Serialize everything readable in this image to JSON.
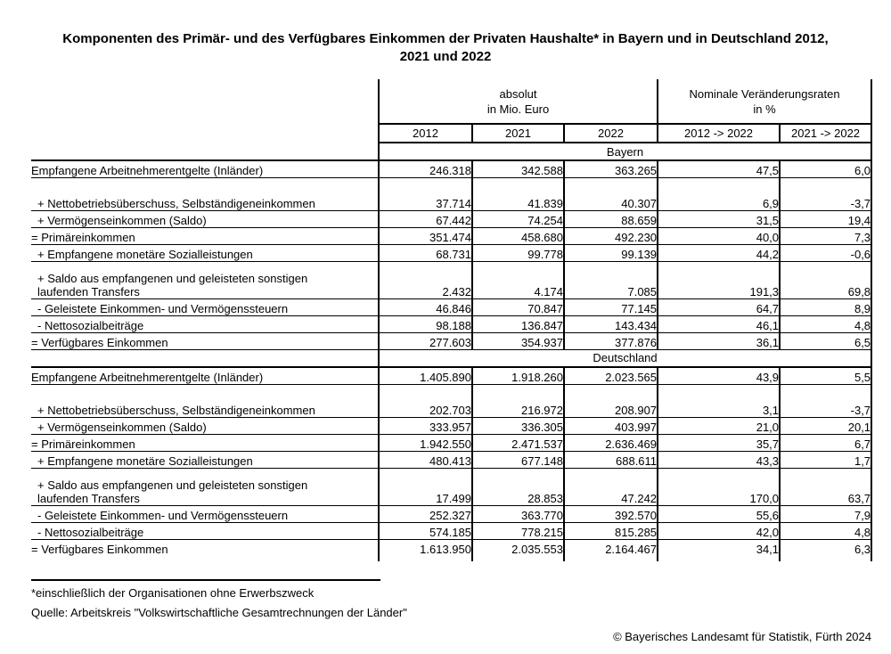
{
  "title_lines": [
    "Komponenten des Primär- und des Verfügbares Einkommen der Privaten Haushalte* in Bayern und in Deutschland 2012,",
    "2021 und 2022"
  ],
  "table": {
    "header": {
      "absolut_label": "absolut",
      "absolut_unit": "in Mio. Euro",
      "change_label": "Nominale Veränderungsraten",
      "change_unit": "in %",
      "columns": [
        "2012",
        "2021",
        "2022",
        "2012 -> 2022",
        "2021 -> 2022"
      ]
    },
    "sections": [
      {
        "region": "Bayern",
        "rows": [
          {
            "label": "Empfangene Arbeitnehmerentgelte (Inländer)",
            "indent": false,
            "values": [
              "246.318",
              "342.588",
              "363.265",
              "47,5",
              "6,0"
            ]
          },
          {
            "label": "+ Nettobetriebsüberschuss, Selbständigeneinkommen",
            "indent": true,
            "tall": true,
            "values": [
              "37.714",
              "41.839",
              "40.307",
              "6,9",
              "-3,7"
            ]
          },
          {
            "label": "+ Vermögenseinkommen (Saldo)",
            "indent": true,
            "values": [
              "67.442",
              "74.254",
              "88.659",
              "31,5",
              "19,4"
            ]
          },
          {
            "label": "= Primäreinkommen",
            "indent": false,
            "values": [
              "351.474",
              "458.680",
              "492.230",
              "40,0",
              "7,3"
            ]
          },
          {
            "label": "+ Empfangene monetäre Sozialleistungen",
            "indent": true,
            "values": [
              "68.731",
              "99.778",
              "99.139",
              "44,2",
              "-0,6"
            ]
          },
          {
            "label": "+ Saldo aus empfangenen und geleisteten sonstigen\nlaufenden Transfers",
            "indent": true,
            "twoline": true,
            "values": [
              "2.432",
              "4.174",
              "7.085",
              "191,3",
              "69,8"
            ]
          },
          {
            "label": "- Geleistete Einkommen- und Vermögenssteuern",
            "indent": true,
            "values": [
              "46.846",
              "70.847",
              "77.145",
              "64,7",
              "8,9"
            ]
          },
          {
            "label": "- Nettosozialbeiträge",
            "indent": true,
            "values": [
              "98.188",
              "136.847",
              "143.434",
              "46,1",
              "4,8"
            ]
          },
          {
            "label": "= Verfügbares Einkommen",
            "indent": false,
            "values": [
              "277.603",
              "354.937",
              "377.876",
              "36,1",
              "6,5"
            ]
          }
        ]
      },
      {
        "region": "Deutschland",
        "rows": [
          {
            "label": "Empfangene Arbeitnehmerentgelte (Inländer)",
            "indent": false,
            "values": [
              "1.405.890",
              "1.918.260",
              "2.023.565",
              "43,9",
              "5,5"
            ]
          },
          {
            "label": "+ Nettobetriebsüberschuss, Selbständigeneinkommen",
            "indent": true,
            "tall": true,
            "values": [
              "202.703",
              "216.972",
              "208.907",
              "3,1",
              "-3,7"
            ]
          },
          {
            "label": "+ Vermögenseinkommen (Saldo)",
            "indent": true,
            "values": [
              "333.957",
              "336.305",
              "403.997",
              "21,0",
              "20,1"
            ]
          },
          {
            "label": "= Primäreinkommen",
            "indent": false,
            "values": [
              "1.942.550",
              "2.471.537",
              "2.636.469",
              "35,7",
              "6,7"
            ]
          },
          {
            "label": "+ Empfangene monetäre Sozialleistungen",
            "indent": true,
            "values": [
              "480.413",
              "677.148",
              "688.611",
              "43,3",
              "1,7"
            ]
          },
          {
            "label": "+ Saldo aus empfangenen und geleisteten sonstigen\nlaufenden Transfers",
            "indent": true,
            "twoline": true,
            "values": [
              "17.499",
              "28.853",
              "47.242",
              "170,0",
              "63,7"
            ]
          },
          {
            "label": "- Geleistete Einkommen- und Vermögenssteuern",
            "indent": true,
            "values": [
              "252.327",
              "363.770",
              "392.570",
              "55,6",
              "7,9"
            ]
          },
          {
            "label": "- Nettosozialbeiträge",
            "indent": true,
            "values": [
              "574.185",
              "778.215",
              "815.285",
              "42,0",
              "4,8"
            ]
          },
          {
            "label": "= Verfügbares Einkommen",
            "indent": false,
            "values": [
              "1.613.950",
              "2.035.553",
              "2.164.467",
              "34,1",
              "6,3"
            ]
          }
        ]
      }
    ]
  },
  "footnotes": {
    "asterisk_note": "*einschließlich der Organisationen ohne Erwerbszweck",
    "source_note": "Quelle: Arbeitskreis \"Volkswirtschaftliche Gesamtrechnungen der Länder\""
  },
  "copyright": "© Bayerisches Landesamt für Statistik, Fürth 2024"
}
